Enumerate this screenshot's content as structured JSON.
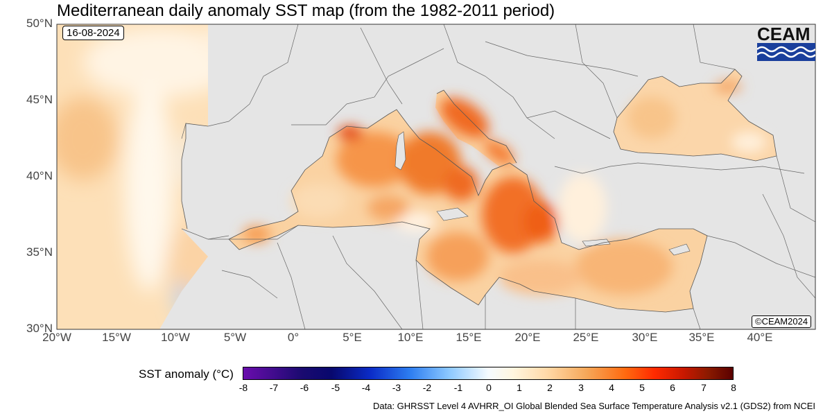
{
  "title": "Mediterranean daily anomaly SST map (from the 1982-2011 period)",
  "date_label": "16-08-2024",
  "logo": {
    "text": "CEAM",
    "icon": "waves-icon",
    "colors": [
      "#1a3f9c",
      "#ffffff"
    ]
  },
  "copyright": "©CEAM2024",
  "axes": {
    "lat_ticks": [
      "50°N",
      "45°N",
      "40°N",
      "35°N",
      "30°N"
    ],
    "lon_ticks": [
      "20°W",
      "15°W",
      "10°W",
      "5°W",
      "0°",
      "5°E",
      "10°E",
      "15°E",
      "20°E",
      "25°E",
      "30°E",
      "35°E",
      "40°E"
    ]
  },
  "legend": {
    "title": "SST anomaly (°C)",
    "ticks": [
      "-8",
      "-7",
      "-6",
      "-5",
      "-4",
      "-3",
      "-2",
      "-1",
      "0",
      "1",
      "2",
      "3",
      "4",
      "5",
      "6",
      "7",
      "8"
    ]
  },
  "data_source": "Data: GHRSST Level 4 AVHRR_OI Global Blended Sea Surface Temperature Analysis v2.1 (GDS2) from NCEI",
  "colors": {
    "land": "#e5e5e5",
    "ocean_base": "#fde3bf",
    "anomaly_high": "#ee5a10",
    "anomaly_neg": "#bfe0ff"
  }
}
